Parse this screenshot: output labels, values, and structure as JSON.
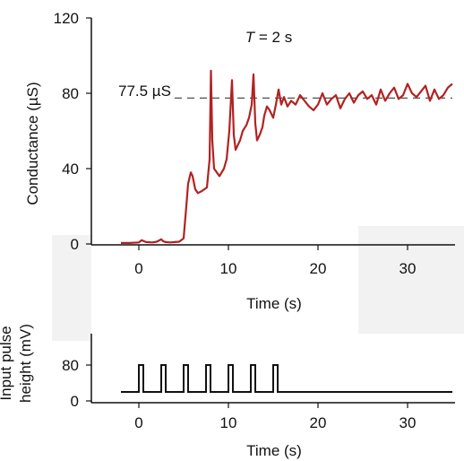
{
  "chart_data": [
    {
      "type": "line",
      "title": "T = 2 s",
      "title_var": "T",
      "title_rest": " = 2 s",
      "xlabel": "Time (s)",
      "ylabel": "Conductance (µS)",
      "xlim": [
        -2,
        35
      ],
      "ylim": [
        0,
        120
      ],
      "xticks": [
        0,
        10,
        20,
        30
      ],
      "yticks": [
        0,
        40,
        80,
        120
      ],
      "reference_line": {
        "y": 77.5,
        "label": "77.5 µS",
        "style": "dashed",
        "x_start": 4
      },
      "line_color": "#b22222",
      "series": [
        {
          "x": [
            -2,
            -1,
            0,
            0.3,
            0.8,
            1.5,
            2,
            2.5,
            2.7,
            3,
            3.5,
            4,
            4.5,
            5,
            5.3,
            5.5,
            5.8,
            6,
            6.3,
            6.6,
            7,
            7.3,
            7.6,
            7.9,
            8.05,
            8.2,
            8.4,
            8.7,
            9,
            9.5,
            9.8,
            10.1,
            10.4,
            10.6,
            10.8,
            11,
            11.3,
            11.6,
            12,
            12.3,
            12.6,
            12.8,
            13,
            13.2,
            13.5,
            13.8,
            14,
            14.3,
            14.6,
            15,
            15.3,
            15.6,
            15.9,
            16.2,
            16.6,
            17,
            17.5,
            18,
            18.5,
            19,
            19.5,
            20,
            20.5,
            21,
            21.5,
            22,
            22.5,
            23,
            23.5,
            24,
            24.5,
            25,
            25.5,
            26,
            26.5,
            27,
            27.5,
            28,
            28.5,
            29,
            29.5,
            30,
            30.5,
            31,
            31.5,
            32,
            32.5,
            33,
            33.5,
            34,
            34.5,
            35
          ],
          "y": [
            0.5,
            0.5,
            0.8,
            2,
            1,
            0.8,
            1.2,
            2.5,
            1.5,
            1,
            0.8,
            1,
            1.2,
            3,
            20,
            32,
            38,
            36,
            29,
            27,
            28,
            29,
            30,
            45,
            92,
            55,
            40,
            38,
            36,
            40,
            45,
            60,
            87,
            58,
            50,
            52,
            55,
            60,
            63,
            67,
            74,
            90,
            64,
            55,
            58,
            62,
            68,
            73,
            71,
            67,
            74,
            82,
            74,
            78,
            73,
            76,
            74,
            79,
            76,
            73,
            71,
            74,
            80,
            74,
            77,
            79,
            72,
            77,
            80,
            75,
            79,
            81,
            77,
            79,
            74,
            82,
            76,
            80,
            83,
            77,
            79,
            85,
            80,
            78,
            81,
            84,
            76,
            82,
            77,
            79,
            83,
            85
          ]
        }
      ]
    },
    {
      "type": "line",
      "xlabel": "Time (s)",
      "ylabel": "Input pulse height (mV)",
      "ylabel_line1": "Input pulse",
      "ylabel_line2": "height (mV)",
      "xlim": [
        -2,
        35
      ],
      "ylim": [
        0,
        120
      ],
      "xticks": [
        0,
        10,
        20,
        30
      ],
      "yticks": [
        0,
        80
      ],
      "baseline_mV": 20,
      "pulse_height_mV": 80,
      "pulse_starts_s": [
        0,
        2.5,
        5,
        7.5,
        10,
        12.5,
        15
      ],
      "pulse_width_s": 0.5,
      "line_color": "#111111"
    }
  ]
}
